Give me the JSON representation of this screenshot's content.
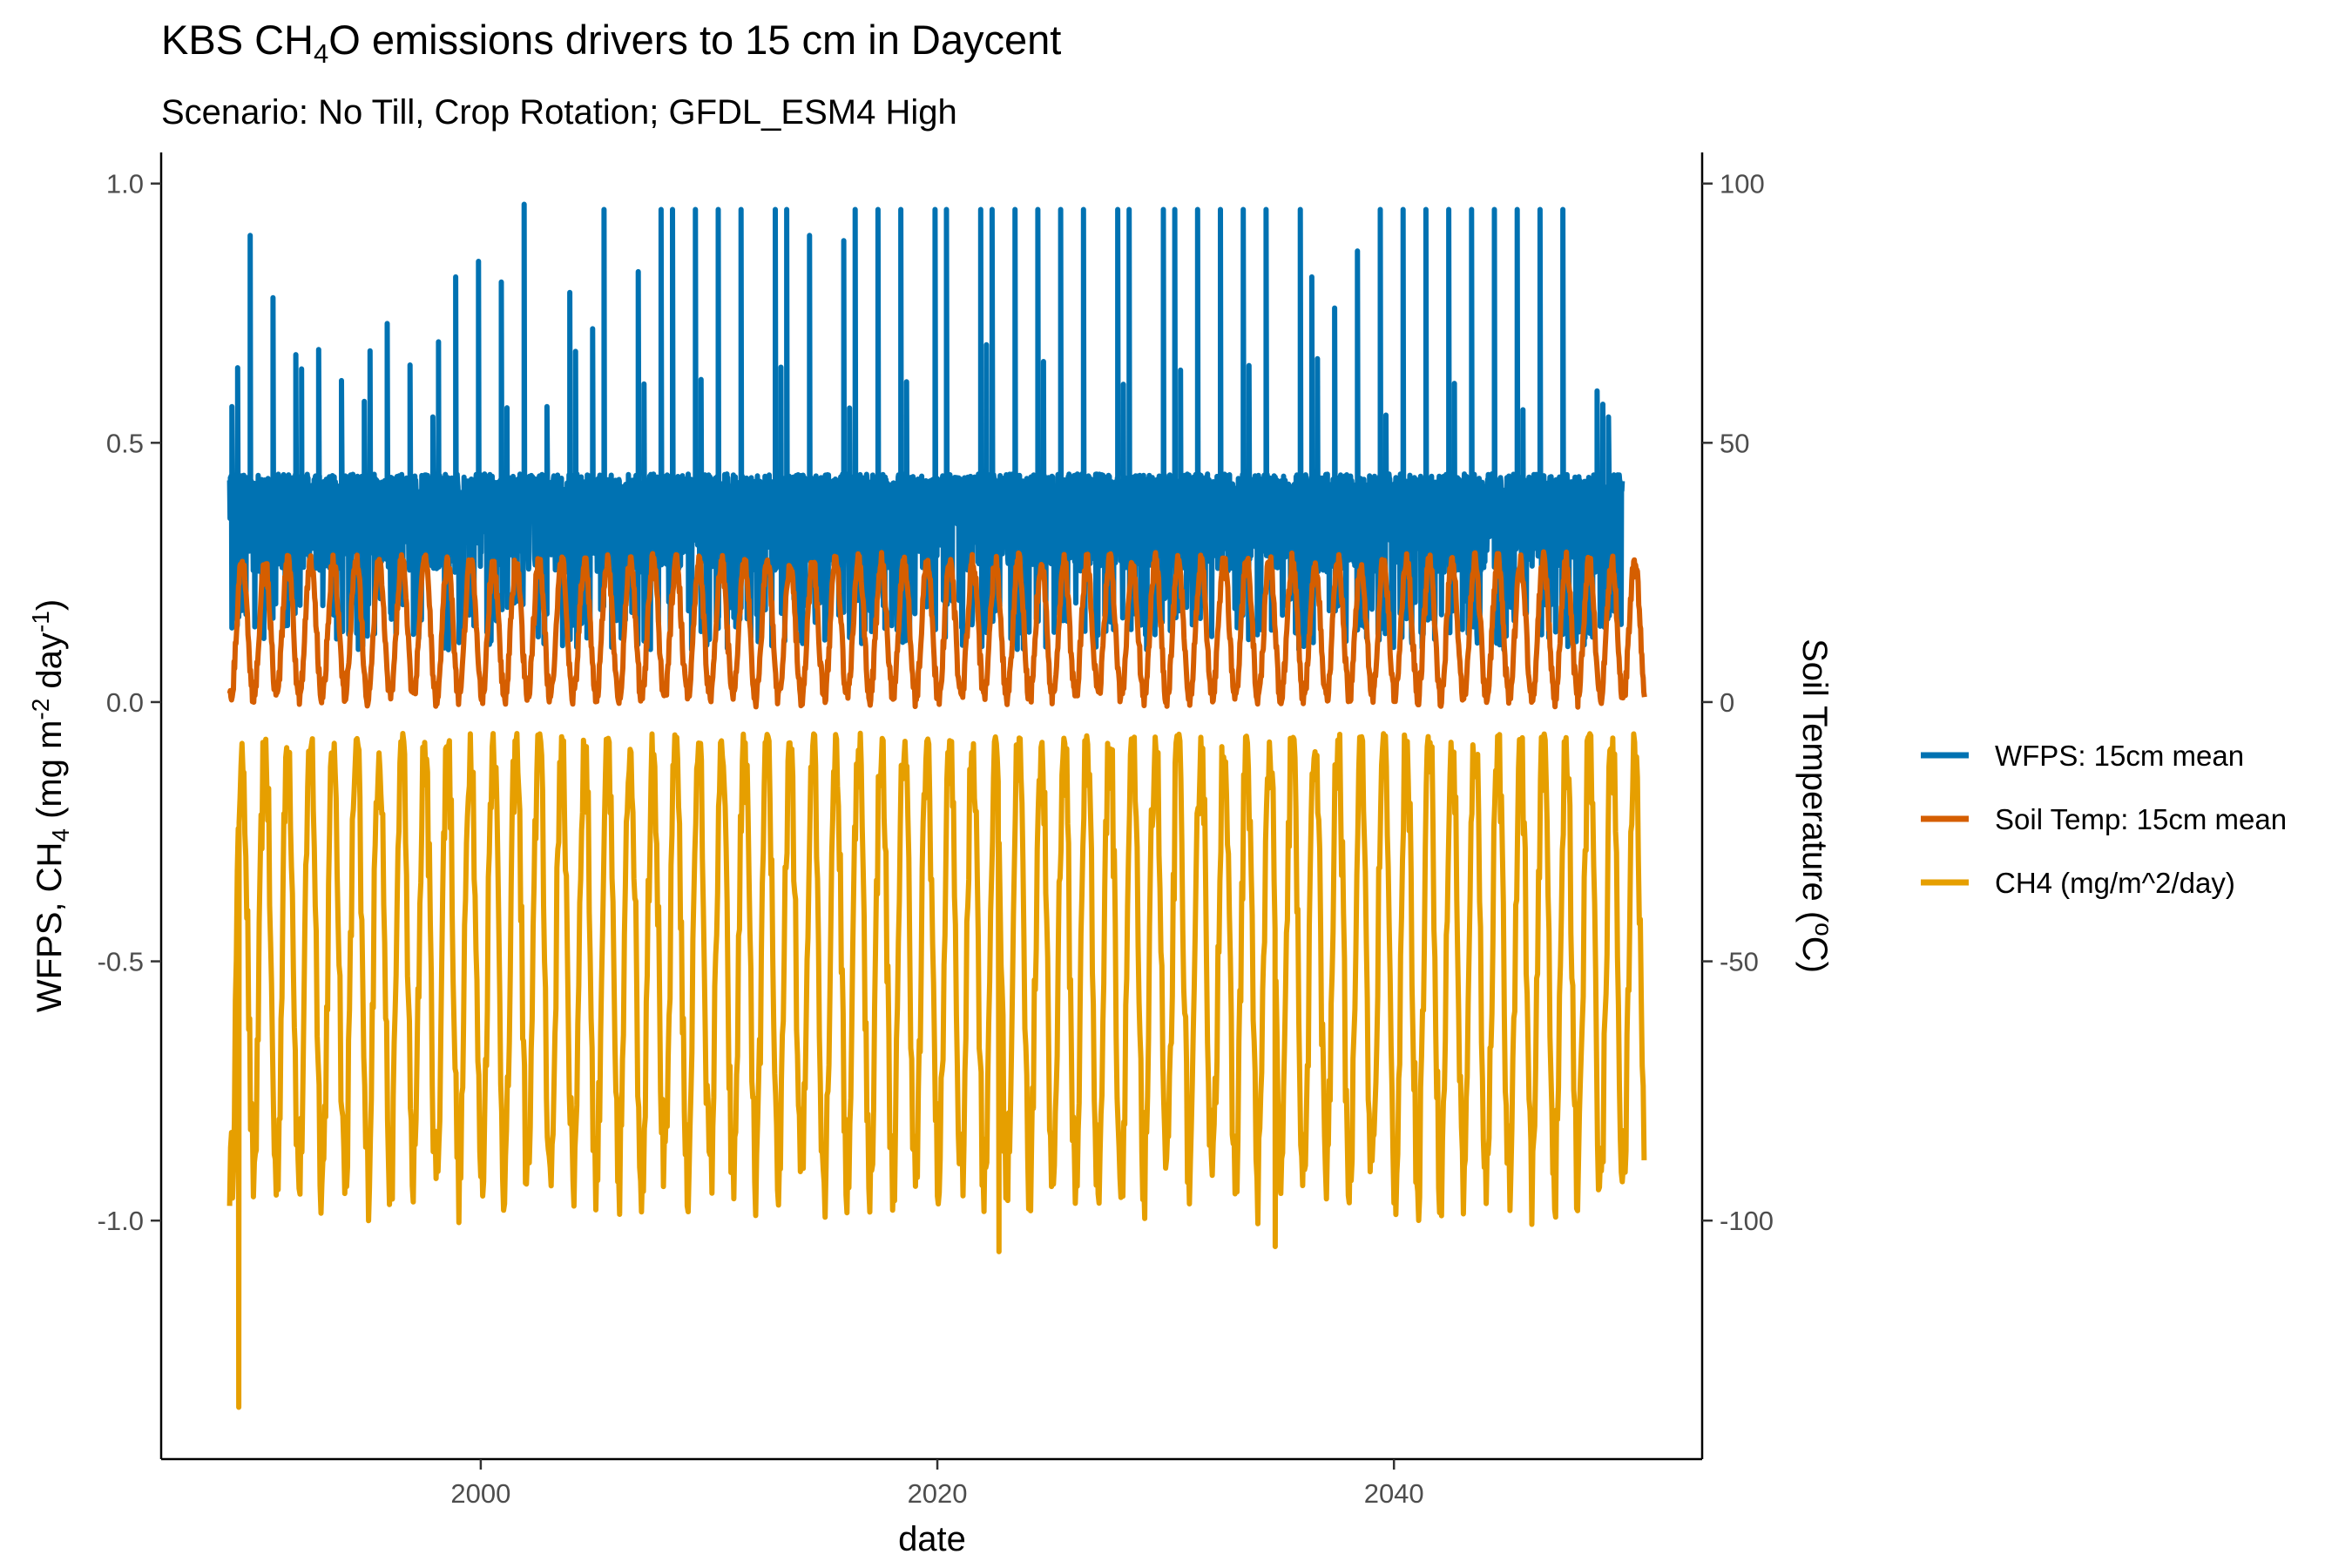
{
  "chart_data": {
    "type": "line",
    "title_parts": [
      "KBS CH",
      "4",
      "O emissions drivers to 15 cm in Daycent"
    ],
    "subtitle": "Scenario: No Till, Crop Rotation; GFDL_ESM4 High",
    "xlabel": "date",
    "ylabel_left_parts": [
      "WFPS, CH",
      "4",
      "  (mg m",
      "-2",
      " day",
      "-1",
      ")"
    ],
    "ylabel_right_parts": [
      "Soil Temperature (",
      "o",
      "C)"
    ],
    "x_ticks": [
      "2000",
      "2020",
      "2040"
    ],
    "x_tick_values": [
      2000,
      2020,
      2040
    ],
    "xlim": [
      1986,
      2053.5
    ],
    "y_left_ticks": [
      "1.0",
      "0.5",
      "0.0",
      "-0.5",
      "-1.0"
    ],
    "y_left_tick_values": [
      1.0,
      0.5,
      0.0,
      -0.5,
      -1.0
    ],
    "ylim_left": [
      -1.46,
      1.06
    ],
    "y_right_ticks": [
      "100",
      "50",
      "0",
      "-50",
      "-100"
    ],
    "y_right_tick_values": [
      100,
      50,
      0,
      -50,
      -100
    ],
    "right_axis_scale": 100,
    "x_range": [
      1989.0,
      2051.0
    ],
    "grid": false,
    "legend_position": "right",
    "series": [
      {
        "name": "WFPS: 15cm mean",
        "color": "#0072B2",
        "axis": "left",
        "x_range": [
          1989.0,
          2050.0
        ],
        "baseline_low": 0.25,
        "baseline_high": 0.44,
        "deep_low": 0.1,
        "peak_years": [
          1989.1,
          1989.9,
          1990.9,
          1991.9,
          1992.9,
          1993.9,
          1994.9,
          1995.9,
          1996.9,
          1997.9,
          1998.9,
          1999.9,
          2000.9,
          2001.9,
          2002.9,
          2003.9,
          2004.9,
          2005.4,
          2006.9,
          2007.9,
          2008.4,
          2009.4,
          2010.4,
          2011.4,
          2012.9,
          2013.4,
          2014.4,
          2015.9,
          2016.4,
          2017.4,
          2018.4,
          2019.9,
          2020.4,
          2021.9,
          2022.4,
          2023.4,
          2024.4,
          2025.4,
          2026.4,
          2027.9,
          2028.4,
          2029.9,
          2030.4,
          2031.4,
          2032.4,
          2033.4,
          2034.4,
          2035.9,
          2036.4,
          2037.4,
          2038.4,
          2039.4,
          2040.4,
          2041.4,
          2042.4,
          2043.4,
          2044.4,
          2045.4,
          2046.4,
          2047.4,
          2048.9,
          2049.4
        ],
        "peak_values": [
          0.57,
          0.9,
          0.78,
          0.67,
          0.68,
          0.62,
          0.58,
          0.73,
          0.65,
          0.55,
          0.82,
          0.85,
          0.81,
          0.96,
          0.57,
          0.79,
          0.72,
          0.95,
          0.83,
          0.95,
          0.95,
          0.95,
          0.95,
          0.95,
          0.95,
          0.95,
          0.9,
          0.89,
          0.95,
          0.95,
          0.95,
          0.95,
          0.95,
          0.95,
          0.95,
          0.95,
          0.95,
          0.95,
          0.95,
          0.95,
          0.95,
          0.95,
          0.95,
          0.95,
          0.95,
          0.95,
          0.95,
          0.95,
          0.82,
          0.76,
          0.87,
          0.95,
          0.95,
          0.95,
          0.95,
          0.95,
          0.95,
          0.95,
          0.95,
          0.95,
          0.6,
          0.55
        ]
      },
      {
        "name": "Soil Temp: 15cm mean",
        "color": "#D55E00",
        "axis": "right",
        "unit": "°C",
        "x_range": [
          1989.0,
          2051.0
        ],
        "cycle_min": 1,
        "cycle_max": 27
      },
      {
        "name": "CH4 (mg/m^2/day)",
        "color": "#E69F00",
        "axis": "left",
        "x_range": [
          1989.0,
          2051.0
        ],
        "cycle_max": -0.06,
        "cycle_min": -0.92,
        "min_point": {
          "x": 1989.4,
          "y": -1.36
        },
        "low_spikes": [
          {
            "x": 2022.7,
            "y": -1.06
          },
          {
            "x": 2034.8,
            "y": -1.05
          }
        ]
      }
    ]
  }
}
